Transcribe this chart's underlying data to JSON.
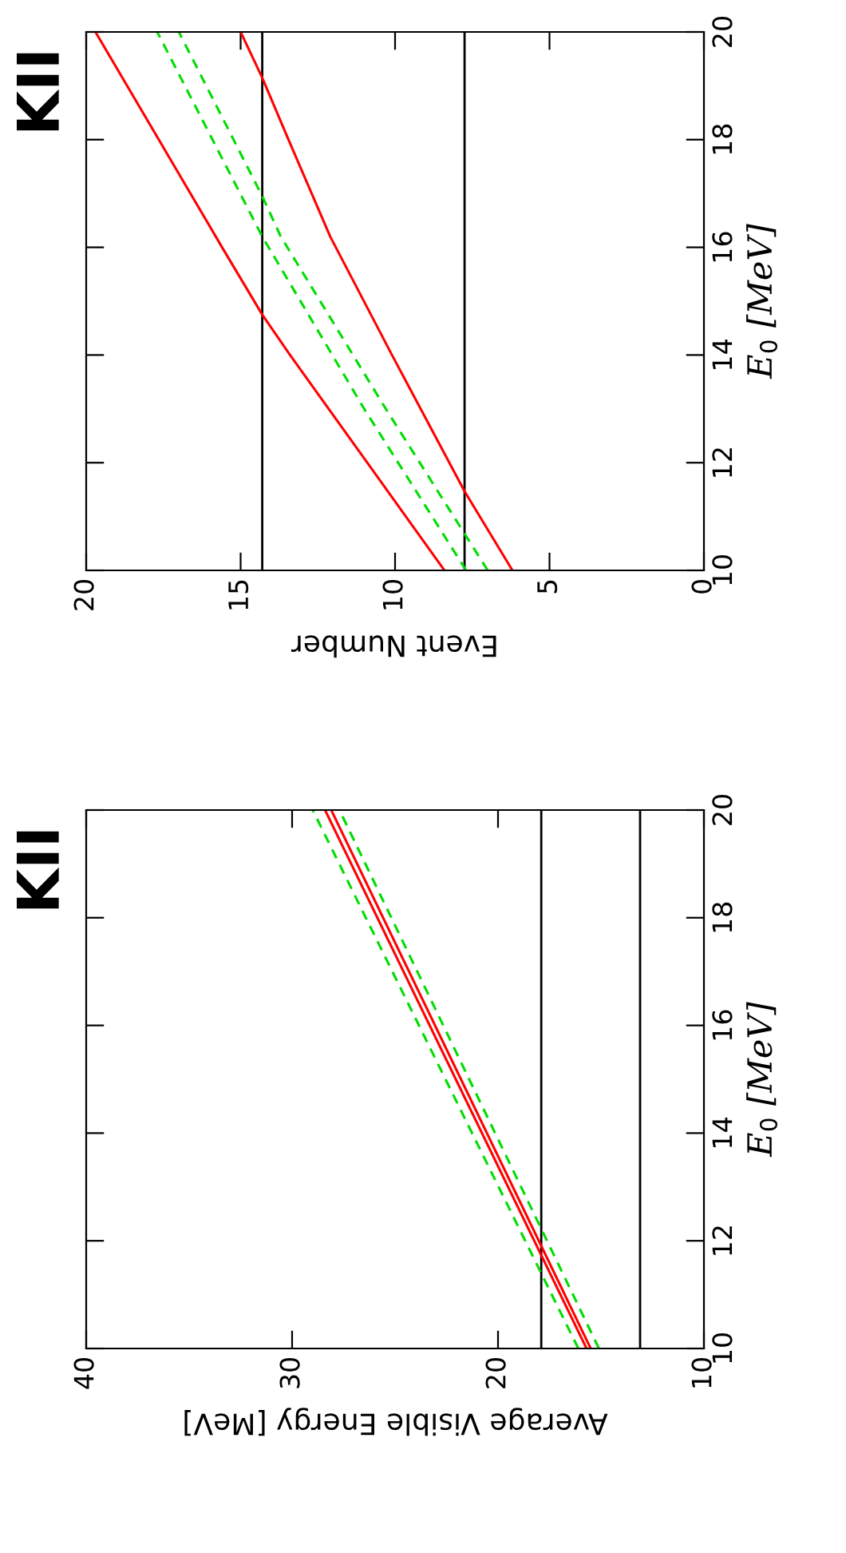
{
  "chart_data": [
    {
      "type": "line",
      "title": "KII",
      "xlabel": "Event Number",
      "ylabel": "E$_{0}$ [MeV]",
      "xlim": [
        20,
        0
      ],
      "xticks": [
        20,
        15,
        10,
        5,
        0
      ],
      "ylim": [
        10,
        20
      ],
      "yticks": [
        10,
        12,
        14,
        16,
        18,
        20
      ],
      "grid": false,
      "legend": false,
      "ref_lines": [
        {
          "axis": "x",
          "value": 14.3,
          "color": "#000000"
        },
        {
          "axis": "x",
          "value": 7.75,
          "color": "#000000"
        }
      ],
      "series": [
        {
          "color": "#ff0000",
          "line_style": "solid",
          "x": [
            8.4,
            10.9,
            13.4,
            14.3,
            15.6,
            17.65,
            19.7
          ],
          "values": [
            10,
            12,
            14,
            14.75,
            16,
            18,
            20
          ]
        },
        {
          "color": "#ff0000",
          "line_style": "solid",
          "x": [
            6.2,
            7.75,
            10.1,
            12.1,
            13.45,
            14.3,
            15.0
          ],
          "values": [
            10,
            11.47,
            14,
            16.2,
            18,
            19.15,
            20
          ]
        },
        {
          "color": "#00dd00",
          "line_style": "dashed",
          "x": [
            7.7,
            11.0,
            14.3,
            17.7
          ],
          "values": [
            10,
            13,
            16.2,
            20
          ]
        },
        {
          "color": "#00dd00",
          "line_style": "dashed",
          "x": [
            7.0,
            10.3,
            13.7,
            14.3,
            17.0
          ],
          "values": [
            10,
            13,
            16.2,
            16.95,
            20
          ]
        }
      ]
    },
    {
      "type": "line",
      "title": "KII",
      "xlabel": "Average Visible Energy [MeV]",
      "ylabel": "E$_{0}$ [MeV]",
      "xlim": [
        40,
        10
      ],
      "xticks": [
        40,
        30,
        20,
        10
      ],
      "ylim": [
        10,
        20
      ],
      "yticks": [
        10,
        12,
        14,
        16,
        18,
        20
      ],
      "grid": false,
      "legend": false,
      "ref_lines": [
        {
          "axis": "x",
          "value": 17.9,
          "color": "#000000"
        },
        {
          "axis": "x",
          "value": 13.1,
          "color": "#000000"
        }
      ],
      "series": [
        {
          "color": "#ff0000",
          "line_style": "solid",
          "x": [
            15.7,
            22.05,
            28.4
          ],
          "values": [
            10,
            15,
            20
          ]
        },
        {
          "color": "#ff0000",
          "line_style": "solid",
          "x": [
            15.5,
            21.8,
            28.1
          ],
          "values": [
            10,
            15,
            20
          ]
        },
        {
          "color": "#00dd00",
          "line_style": "dashed",
          "x": [
            16.1,
            22.55,
            29.0
          ],
          "values": [
            10,
            15,
            20
          ]
        },
        {
          "color": "#00dd00",
          "line_style": "dashed",
          "x": [
            15.1,
            21.4,
            27.7
          ],
          "values": [
            10,
            15,
            20
          ]
        }
      ]
    }
  ]
}
